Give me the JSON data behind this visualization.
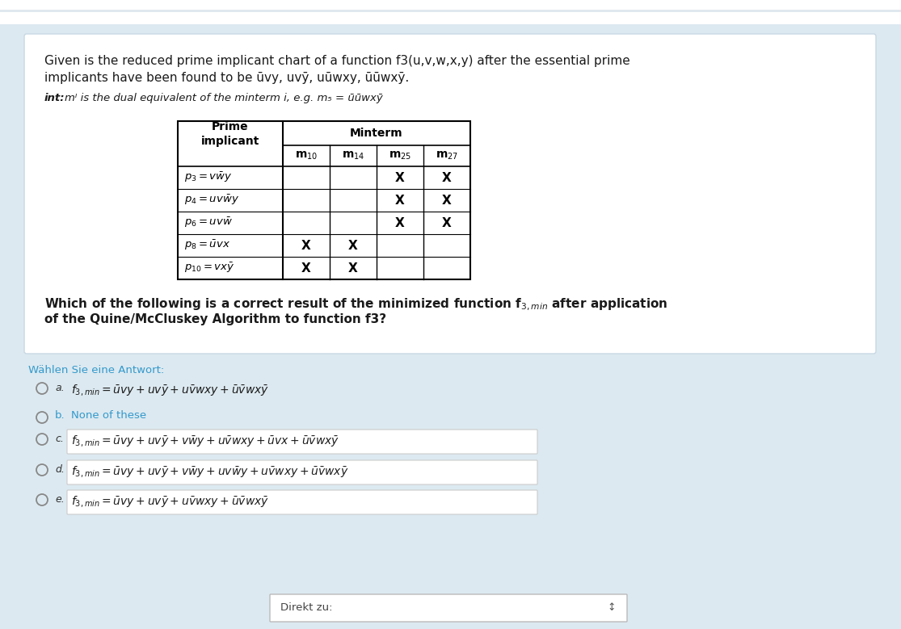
{
  "bg_outer": "#e8f4f8",
  "bg_page": "#dce9f0",
  "white_box_color": "#ffffff",
  "title_text1": "Given is the reduced prime implicant chart of a function f3(u,v,w,x,y) after the essential prime",
  "title_text2": "implicants have been found to be ūvy, uvȳ, uūwxy, ūūwxȳ.",
  "int_label": "int:",
  "int_rest": " mᴵ is the dual equivalent of the minterm i, e.g. m₅ = ūūwxȳ",
  "table_rows_latex": [
    {
      "label": "$p_3 = v\\bar{w}y$",
      "marks": [
        0,
        0,
        1,
        1
      ]
    },
    {
      "label": "$p_4 = uv\\bar{w}y$",
      "marks": [
        0,
        0,
        1,
        1
      ]
    },
    {
      "label": "$p_6 = uv\\bar{w}$",
      "marks": [
        0,
        0,
        1,
        1
      ]
    },
    {
      "label": "$p_8 = \\bar{u}vx$",
      "marks": [
        1,
        1,
        0,
        0
      ]
    },
    {
      "label": "$p_{10} = vx\\bar{y}$",
      "marks": [
        1,
        1,
        0,
        0
      ]
    }
  ],
  "minterm_labels_latex": [
    "$\\mathbf{m_{10}}$",
    "$\\mathbf{m_{14}}$",
    "$\\mathbf{m_{25}}$",
    "$\\mathbf{m_{27}}$"
  ],
  "question_text1": "Which of the following is a correct result of the minimized function f",
  "question_text2": "of the Quine/McCluskey Algorithm to function f3?",
  "waehlen_text": "Wählen Sie eine Antwort:",
  "option_a_latex": "$f_{3,min} = \\bar{u}vy + uv\\bar{y} + u\\bar{u}wxy + \\bar{u}\\bar{u}wx\\bar{y}$",
  "option_b_text": "None of these",
  "option_c_latex": "$f_{3,min} = \\bar{u}vy + uv\\bar{y} + v\\bar{w}y + u\\bar{u}wxy + \\bar{u}vx + \\bar{u}\\bar{u}wx\\bar{y}$",
  "option_d_latex": "$f_{3,min} = \\bar{u}vy + uv\\bar{y} + v\\bar{w}y + uv\\bar{w}y + u\\bar{u}wxy + \\bar{u}\\bar{u}wx\\bar{y}$",
  "option_e_latex": "$f_{3,min} = \\bar{u}vy + uv\\bar{y} + u\\bar{u}wxy + \\bar{u}\\bar{u}wx\\bar{y}$",
  "link_color": "#3399cc",
  "top_stripe_color": "#c8dce8",
  "direkt_text": "Direkt zu:"
}
